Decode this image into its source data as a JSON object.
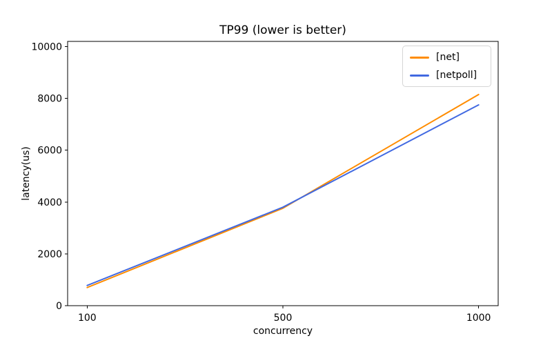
{
  "figure": {
    "background": "#ffffff",
    "frame_color": "#000000",
    "tick_color": "#000000"
  },
  "chart_data": {
    "type": "line",
    "title": "TP99 (lower is better)",
    "xlabel": "concurrency",
    "ylabel": "latency(us)",
    "categories": [
      "100",
      "500",
      "1000"
    ],
    "series": [
      {
        "name": "[net]",
        "color": "#ff8c00",
        "values": [
          700,
          3760,
          8150
        ]
      },
      {
        "name": "[netpoll]",
        "color": "#4169e1",
        "values": [
          780,
          3800,
          7750
        ]
      }
    ],
    "yticks": [
      0,
      2000,
      4000,
      6000,
      8000,
      10000
    ],
    "ylim": [
      0,
      10200
    ],
    "grid": false,
    "legend_position": "upper right",
    "legend_border_color": "#d5d5d5"
  }
}
